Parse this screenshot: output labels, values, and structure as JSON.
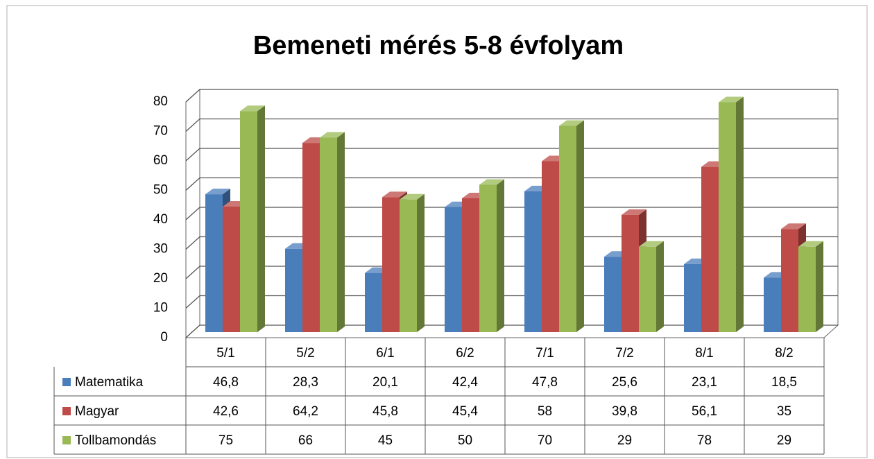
{
  "chart_data": {
    "type": "bar",
    "title": "Bemeneti mérés 5-8 évfolyam",
    "categories": [
      "5/1",
      "5/2",
      "6/1",
      "6/2",
      "7/1",
      "7/2",
      "8/1",
      "8/2"
    ],
    "series": [
      {
        "name": "Matematika",
        "color": "#4a7ebb",
        "values": [
          46.8,
          28.3,
          20.1,
          42.4,
          47.8,
          25.6,
          23.1,
          18.5
        ],
        "value_labels": [
          "46,8",
          "28,3",
          "20,1",
          "42,4",
          "47,8",
          "25,6",
          "23,1",
          "18,5"
        ]
      },
      {
        "name": "Magyar",
        "color": "#be4b48",
        "values": [
          42.6,
          64.2,
          45.8,
          45.4,
          58,
          39.8,
          56.1,
          35
        ],
        "value_labels": [
          "42,6",
          "64,2",
          "45,8",
          "45,4",
          "58",
          "39,8",
          "56,1",
          "35"
        ]
      },
      {
        "name": "Tollbamondás",
        "color": "#98b954",
        "values": [
          75,
          66,
          45,
          50,
          70,
          29,
          78,
          29
        ],
        "value_labels": [
          "75",
          "66",
          "45",
          "50",
          "70",
          "29",
          "78",
          "29"
        ]
      }
    ],
    "ylim": [
      0,
      80
    ],
    "yticks": [
      0,
      10,
      20,
      30,
      40,
      50,
      60,
      70,
      80
    ],
    "grid": true
  }
}
